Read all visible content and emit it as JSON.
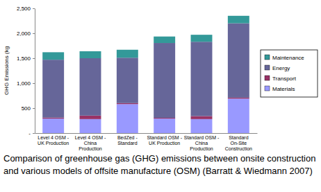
{
  "chart_data": {
    "type": "bar",
    "stacked": true,
    "title": [
      "Comparison of greenhouse gas (GHG) emissions between onsite construction",
      "and various models of offsite manufacture (OSM) (Barratt & Wiedmann 2007)"
    ],
    "y_label": "GHG Emissions (kg",
    "categories": [
      "Level 4 OSM - UK Production",
      "Level 4 OSM - China Production",
      "BedZed - Standard",
      "Standard OSM - UK Production",
      "Standard OSM - China Production",
      "Standard On-Site Construction"
    ],
    "series": [
      {
        "name": "Materials",
        "color": "#9999ff",
        "values": [
          290,
          280,
          580,
          290,
          280,
          690
        ]
      },
      {
        "name": "Transport",
        "color": "#993366",
        "values": [
          20,
          70,
          20,
          15,
          60,
          20
        ]
      },
      {
        "name": "Energy",
        "color": "#666699",
        "values": [
          1160,
          1150,
          910,
          1500,
          1490,
          1490
        ]
      },
      {
        "name": "Maintenance",
        "color": "#339999",
        "values": [
          150,
          140,
          160,
          130,
          140,
          150
        ]
      }
    ],
    "ylim": [
      0,
      2500
    ],
    "yticks": [
      {
        "value": 0,
        "label": "-"
      },
      500,
      {
        "value": 1000,
        "label": "1,000"
      },
      {
        "value": 1500,
        "label": "1,500"
      },
      {
        "value": 2000,
        "label": "2,000"
      },
      {
        "value": 2500,
        "label": "2,500"
      }
    ],
    "grid": false,
    "legend": "right"
  }
}
